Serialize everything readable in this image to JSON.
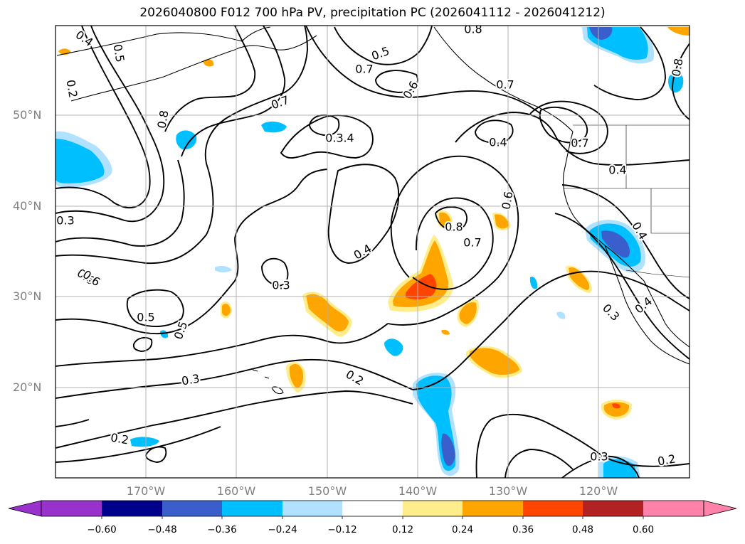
{
  "title": "2026040800 F012 700 hPa PV, precipitation PC (2026041112 - 2026041212)",
  "axes": {
    "lat_labels": [
      "50°N",
      "40°N",
      "30°N",
      "20°N"
    ],
    "lon_labels": [
      "170°W",
      "160°W",
      "150°W",
      "140°W",
      "130°W",
      "120°W"
    ]
  },
  "colorbar": {
    "colors": [
      "#9932cc",
      "#00008b",
      "#3a5fcd",
      "#00bfff",
      "#b0e2ff",
      "#ffffff",
      "#ffec8b",
      "#ffa500",
      "#ff4500",
      "#b22222",
      "#ff82ab"
    ],
    "tick_labels": [
      "−0.60",
      "−0.48",
      "−0.36",
      "−0.24",
      "−0.12",
      "0.12",
      "0.24",
      "0.36",
      "0.48",
      "0.60"
    ]
  },
  "contour_labels": [
    "0.4",
    "0.5",
    "0.2",
    "0.8",
    "0.6",
    "0.7",
    "0.5",
    "0.6",
    "0.7",
    "0.8",
    "0.7",
    "0.4",
    "0.4",
    "0.7",
    "0.4",
    "0.6",
    "0.8",
    "0.7",
    "0.4",
    "0.3",
    "0.3",
    "0.6",
    "0.5",
    "0.5",
    "0.3",
    "0.2",
    "0.3",
    "0.2",
    "0.3",
    "0.2",
    "0.4",
    "0.8",
    "0.3",
    "0.4"
  ]
}
